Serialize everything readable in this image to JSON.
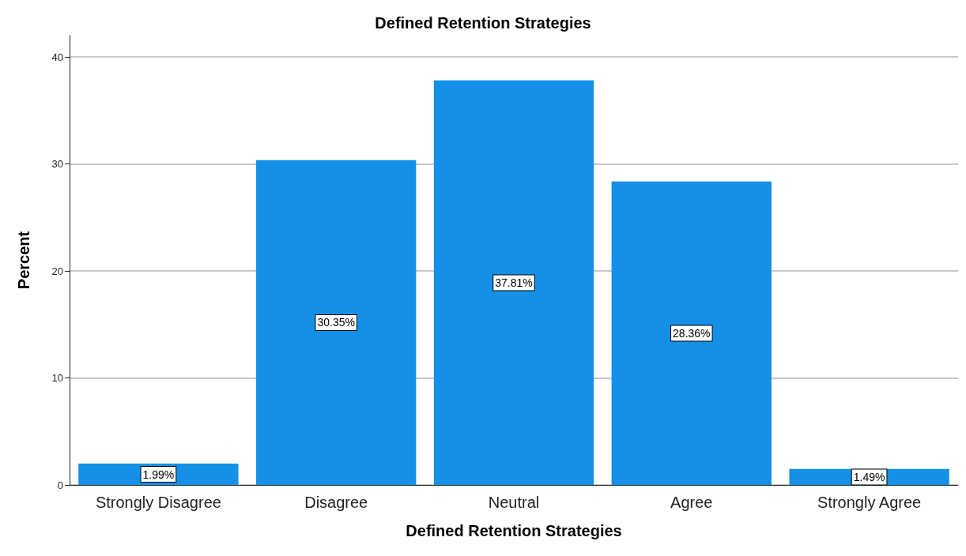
{
  "chart_data": {
    "type": "bar",
    "title": "Defined Retention Strategies",
    "xlabel": "Defined Retention Strategies",
    "ylabel": "Percent",
    "categories": [
      "Strongly Disagree",
      "Disagree",
      "Neutral",
      "Agree",
      "Strongly Agree"
    ],
    "values": [
      1.99,
      30.35,
      37.81,
      28.36,
      1.49
    ],
    "value_labels": [
      "1.99%",
      "30.35%",
      "37.81%",
      "28.36%",
      "1.49%"
    ],
    "color": "#1490e6",
    "ylim": [
      0,
      42
    ],
    "yticks": [
      0,
      10,
      20,
      30,
      40
    ],
    "grid": "y"
  }
}
